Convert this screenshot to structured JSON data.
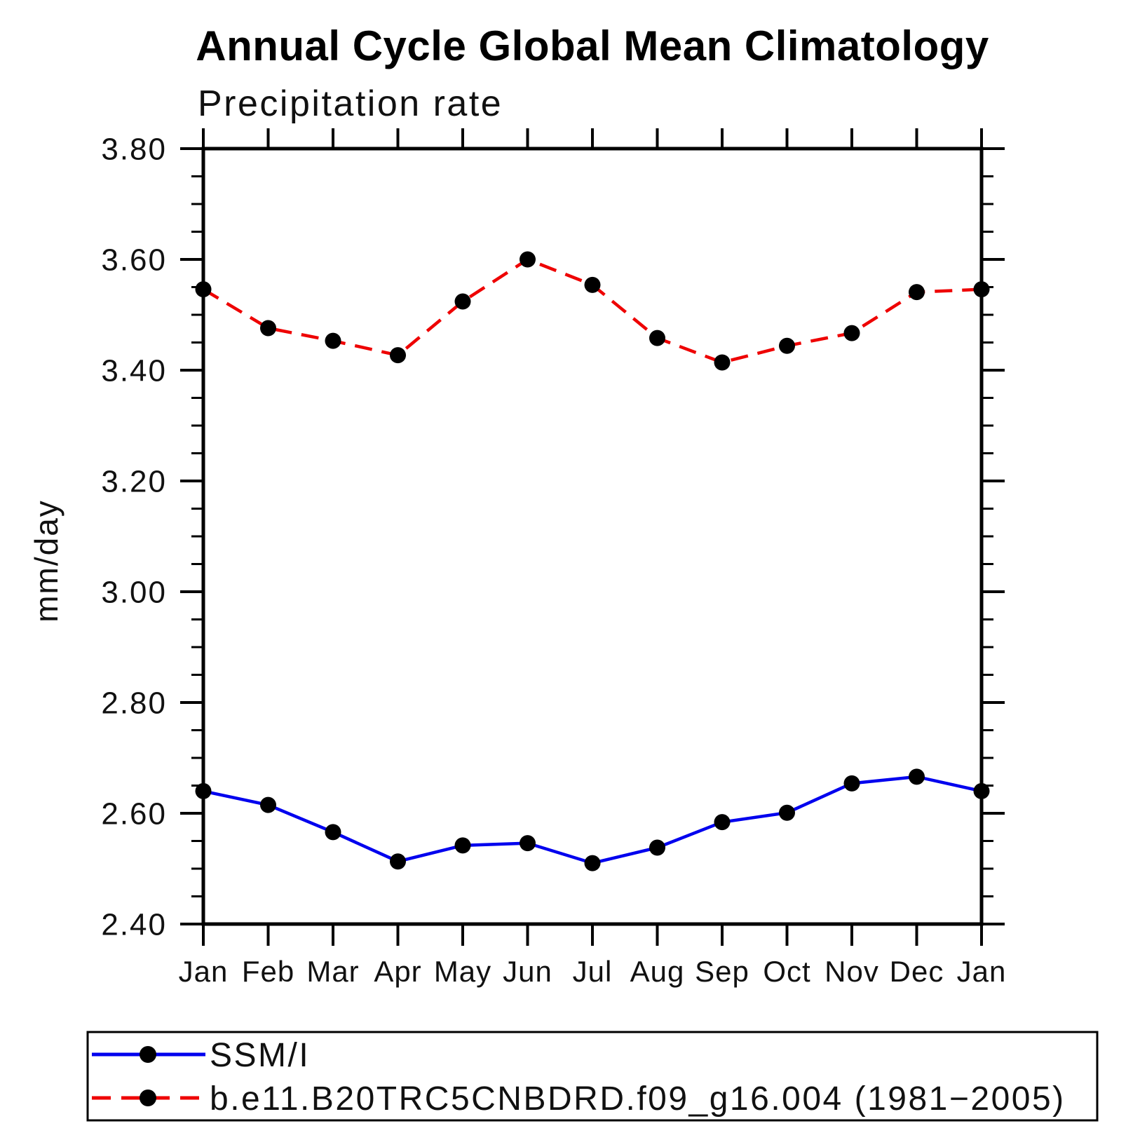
{
  "title": "Annual Cycle Global Mean Climatology",
  "subtitle": "Precipitation rate",
  "chart_data": {
    "type": "line",
    "title": "Annual Cycle Global Mean Climatology",
    "subtitle": "Precipitation rate",
    "ylabel": "mm/day",
    "xlabel": "",
    "ylim": [
      2.4,
      3.8
    ],
    "ytick_step": 0.2,
    "yminor_step": 0.05,
    "ytick_labels": [
      "2.40",
      "2.60",
      "2.80",
      "3.00",
      "3.20",
      "3.40",
      "3.60",
      "3.80"
    ],
    "categories": [
      "Jan",
      "Feb",
      "Mar",
      "Apr",
      "May",
      "Jun",
      "Jul",
      "Aug",
      "Sep",
      "Oct",
      "Nov",
      "Dec",
      "Jan"
    ],
    "grid": false,
    "legend_position": "bottom-box",
    "marker": "filled-circle",
    "marker_color": "#000000",
    "axis_color": "#000000",
    "series": [
      {
        "name": "SSM/I",
        "color": "#0000ee",
        "line_style": "solid",
        "values": [
          2.64,
          2.615,
          2.566,
          2.513,
          2.542,
          2.546,
          2.51,
          2.538,
          2.584,
          2.601,
          2.654,
          2.666,
          2.64
        ]
      },
      {
        "name": "b.e11.B20TRC5CNBDRD.f09_g16.004 (1981−2005)",
        "color": "#ee0000",
        "line_style": "dashed",
        "values": [
          3.546,
          3.476,
          3.453,
          3.427,
          3.524,
          3.6,
          3.554,
          3.458,
          3.414,
          3.444,
          3.467,
          3.541,
          3.546
        ]
      }
    ]
  }
}
